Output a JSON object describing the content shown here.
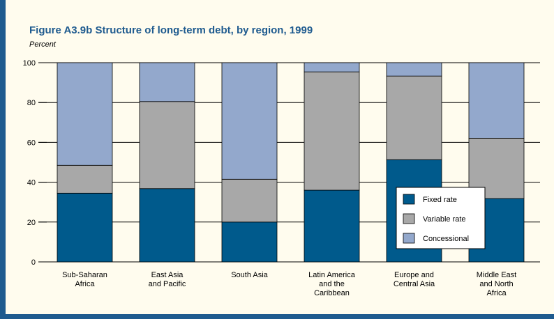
{
  "figure": {
    "title": "Figure A3.9b  Structure of long-term debt, by region, 1999",
    "unit_label": "Percent"
  },
  "colors": {
    "background": "#fffcee",
    "frame": "#1f5b8f",
    "title": "#1f5b8f",
    "fixed": "#005a8c",
    "variable": "#a8a8a8",
    "concessional": "#93a8cc"
  },
  "chart_data": {
    "type": "bar",
    "stacked": true,
    "title": "Figure A3.9b  Structure of long-term debt, by region, 1999",
    "ylabel": "Percent",
    "ylim": [
      0,
      100
    ],
    "yticks": [
      0,
      20,
      40,
      60,
      80,
      100
    ],
    "grid": true,
    "legend_position": "lower-right",
    "categories": [
      [
        "Sub-Saharan",
        "Africa"
      ],
      [
        "East Asia",
        "and Pacific"
      ],
      [
        "South Asia"
      ],
      [
        "Latin America",
        "and the",
        "Caribbean"
      ],
      [
        "Europe and",
        "Central Asia"
      ],
      [
        "Middle East",
        "and North",
        "Africa"
      ]
    ],
    "series": [
      {
        "name": "Fixed rate",
        "color": "#005a8c",
        "values": [
          34.5,
          36.8,
          20.0,
          36.0,
          51.3,
          31.8
        ]
      },
      {
        "name": "Variable rate",
        "color": "#a8a8a8",
        "values": [
          14.0,
          43.7,
          21.5,
          59.4,
          42.0,
          30.3
        ]
      },
      {
        "name": "Concessional",
        "color": "#93a8cc",
        "values": [
          51.5,
          19.5,
          58.5,
          4.6,
          6.7,
          37.9
        ]
      }
    ]
  }
}
